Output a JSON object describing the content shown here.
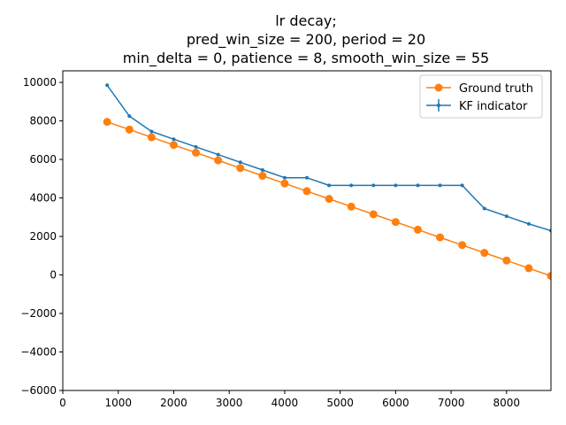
{
  "chart_data": {
    "type": "line",
    "title_lines": [
      "lr decay;",
      "pred_win_size = 200, period = 20",
      "min_delta = 0, patience = 8, smooth_win_size = 55"
    ],
    "xlabel": "",
    "ylabel": "",
    "xlim": [
      0,
      8800
    ],
    "ylim": [
      -6000,
      10600
    ],
    "xticks": [
      0,
      1000,
      2000,
      3000,
      4000,
      5000,
      6000,
      7000,
      8000
    ],
    "yticks": [
      -6000,
      -4000,
      -2000,
      0,
      2000,
      4000,
      6000,
      8000,
      10000
    ],
    "grid": false,
    "legend_position": "top-right",
    "series": [
      {
        "name": "Ground truth",
        "color": "#ff7f0e",
        "marker": "circle",
        "x": [
          800,
          1200,
          1600,
          2000,
          2400,
          2800,
          3200,
          3600,
          4000,
          4400,
          4800,
          5200,
          5600,
          6000,
          6400,
          6800,
          7200,
          7600,
          8000,
          8400,
          8800
        ],
        "y": [
          7950,
          7550,
          7150,
          6750,
          6350,
          5950,
          5550,
          5150,
          4750,
          4350,
          3950,
          3550,
          3150,
          2750,
          2350,
          1950,
          1550,
          1150,
          750,
          350,
          -50
        ]
      },
      {
        "name": "KF indicator",
        "color": "#1f77b4",
        "marker": "point-with-errorbar",
        "x": [
          800,
          1200,
          1600,
          2000,
          2400,
          2800,
          3200,
          3600,
          4000,
          4400,
          4800,
          5200,
          5600,
          6000,
          6400,
          6800,
          7200,
          7600,
          8000,
          8400,
          8800
        ],
        "y": [
          9850,
          8250,
          7450,
          7050,
          6650,
          6250,
          5850,
          5450,
          5050,
          5050,
          4650,
          4650,
          4650,
          4650,
          4650,
          4650,
          4650,
          3450,
          3050,
          2650,
          2300
        ]
      }
    ]
  }
}
